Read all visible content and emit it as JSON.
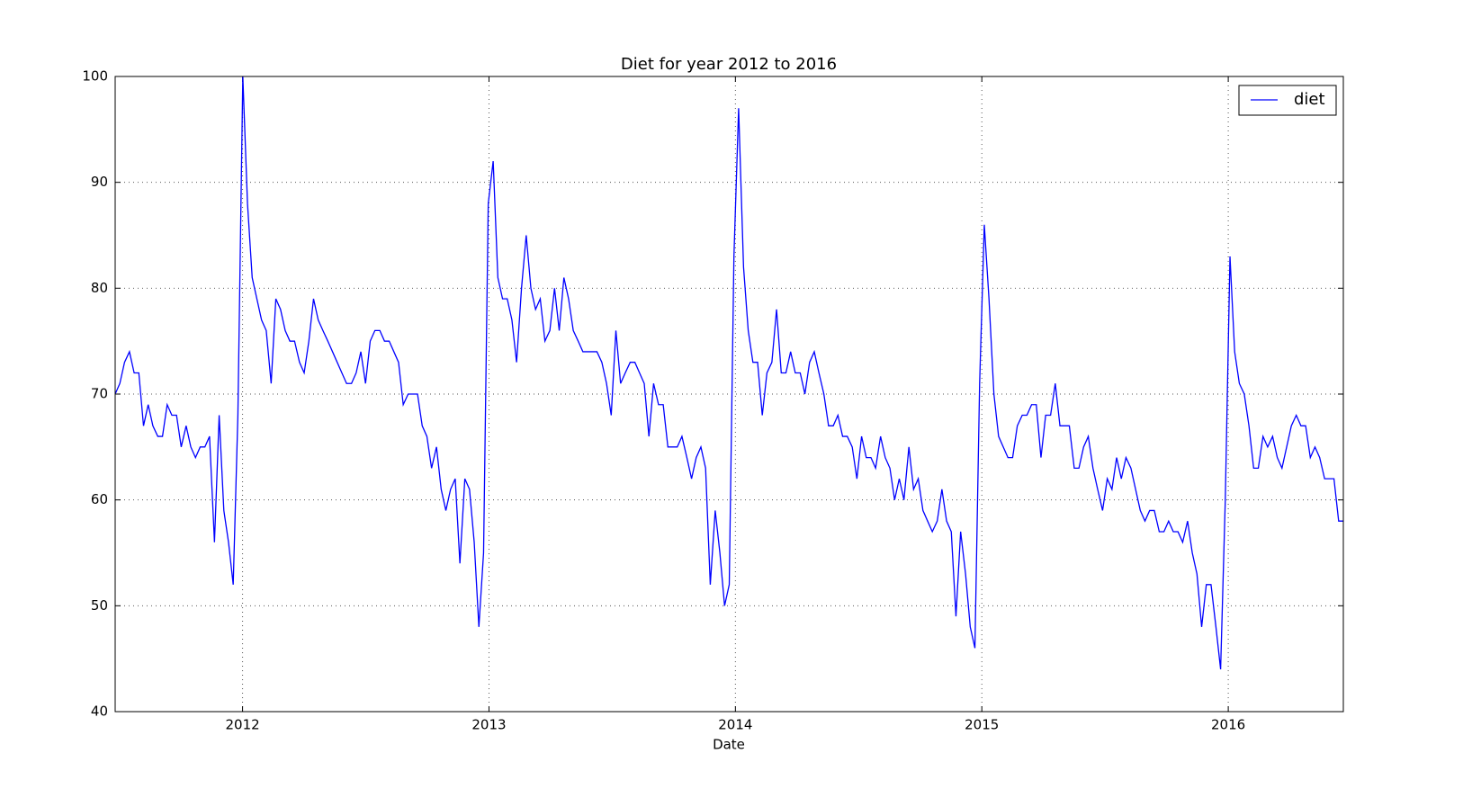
{
  "chart_data": {
    "type": "line",
    "title": "Diet for year 2012 to 2016",
    "x_label": "Date",
    "x": [
      2011.483,
      2011.502,
      2011.521,
      2011.541,
      2011.56,
      2011.579,
      2011.598,
      2011.617,
      2011.636,
      2011.656,
      2011.675,
      2011.694,
      2011.713,
      2011.732,
      2011.751,
      2011.771,
      2011.79,
      2011.809,
      2011.828,
      2011.847,
      2011.866,
      2011.886,
      2011.905,
      2011.924,
      2011.943,
      2011.962,
      2011.981,
      2012.001,
      2012.02,
      2012.039,
      2012.058,
      2012.077,
      2012.096,
      2012.116,
      2012.135,
      2012.154,
      2012.173,
      2012.192,
      2012.211,
      2012.231,
      2012.25,
      2012.269,
      2012.288,
      2012.307,
      2012.326,
      2012.346,
      2012.365,
      2012.384,
      2012.403,
      2012.422,
      2012.442,
      2012.461,
      2012.48,
      2012.499,
      2012.518,
      2012.537,
      2012.557,
      2012.576,
      2012.595,
      2012.614,
      2012.633,
      2012.652,
      2012.672,
      2012.691,
      2012.71,
      2012.729,
      2012.748,
      2012.767,
      2012.787,
      2012.806,
      2012.825,
      2012.844,
      2012.863,
      2012.882,
      2012.902,
      2012.921,
      2012.94,
      2012.959,
      2012.978,
      2012.997,
      2013.017,
      2013.036,
      2013.055,
      2013.074,
      2013.093,
      2013.112,
      2013.132,
      2013.151,
      2013.17,
      2013.189,
      2013.208,
      2013.227,
      2013.247,
      2013.266,
      2013.285,
      2013.304,
      2013.323,
      2013.342,
      2013.362,
      2013.381,
      2013.4,
      2013.419,
      2013.438,
      2013.458,
      2013.477,
      2013.496,
      2013.515,
      2013.534,
      2013.553,
      2013.573,
      2013.592,
      2013.611,
      2013.63,
      2013.649,
      2013.668,
      2013.688,
      2013.707,
      2013.726,
      2013.745,
      2013.764,
      2013.783,
      2013.803,
      2013.822,
      2013.841,
      2013.86,
      2013.879,
      2013.898,
      2013.918,
      2013.937,
      2013.956,
      2013.975,
      2013.994,
      2014.013,
      2014.033,
      2014.052,
      2014.071,
      2014.09,
      2014.109,
      2014.128,
      2014.148,
      2014.167,
      2014.186,
      2014.205,
      2014.224,
      2014.243,
      2014.263,
      2014.282,
      2014.301,
      2014.32,
      2014.339,
      2014.359,
      2014.378,
      2014.397,
      2014.416,
      2014.435,
      2014.454,
      2014.474,
      2014.493,
      2014.512,
      2014.531,
      2014.55,
      2014.569,
      2014.589,
      2014.608,
      2014.627,
      2014.646,
      2014.665,
      2014.684,
      2014.704,
      2014.723,
      2014.742,
      2014.761,
      2014.78,
      2014.799,
      2014.819,
      2014.838,
      2014.857,
      2014.876,
      2014.895,
      2014.914,
      2014.934,
      2014.953,
      2014.972,
      2014.991,
      2015.01,
      2015.029,
      2015.049,
      2015.068,
      2015.087,
      2015.106,
      2015.125,
      2015.144,
      2015.164,
      2015.183,
      2015.202,
      2015.221,
      2015.24,
      2015.259,
      2015.279,
      2015.298,
      2015.317,
      2015.336,
      2015.355,
      2015.375,
      2015.394,
      2015.413,
      2015.432,
      2015.451,
      2015.47,
      2015.49,
      2015.509,
      2015.528,
      2015.547,
      2015.566,
      2015.585,
      2015.605,
      2015.624,
      2015.643,
      2015.662,
      2015.681,
      2015.7,
      2015.72,
      2015.739,
      2015.758,
      2015.777,
      2015.796,
      2015.815,
      2015.835,
      2015.854,
      2015.873,
      2015.892,
      2015.911,
      2015.93,
      2015.95,
      2015.969,
      2015.988,
      2016.007,
      2016.026,
      2016.045,
      2016.065,
      2016.084,
      2016.103,
      2016.122,
      2016.141,
      2016.16,
      2016.18,
      2016.199,
      2016.218,
      2016.237,
      2016.256,
      2016.276,
      2016.295,
      2016.314,
      2016.333,
      2016.352,
      2016.371,
      2016.391,
      2016.41,
      2016.429,
      2016.448,
      2016.467
    ],
    "series": [
      {
        "name": "diet",
        "color": "#0000ff",
        "values": [
          70,
          71,
          73,
          74,
          72,
          72,
          67,
          69,
          67,
          66,
          66,
          69,
          68,
          68,
          65,
          67,
          65,
          64,
          65,
          65,
          66,
          56,
          68,
          59,
          56,
          52,
          68,
          100,
          88,
          81,
          79,
          77,
          76,
          71,
          79,
          78,
          76,
          75,
          75,
          73,
          72,
          75,
          79,
          77,
          76,
          75,
          74,
          73,
          72,
          71,
          71,
          72,
          74,
          71,
          75,
          76,
          76,
          75,
          75,
          74,
          73,
          69,
          70,
          70,
          70,
          67,
          66,
          63,
          65,
          61,
          59,
          61,
          62,
          54,
          62,
          61,
          56,
          48,
          55,
          88,
          92,
          81,
          79,
          79,
          77,
          73,
          80,
          85,
          80,
          78,
          79,
          75,
          76,
          80,
          76,
          81,
          79,
          76,
          75,
          74,
          74,
          74,
          74,
          73,
          71,
          68,
          76,
          71,
          72,
          73,
          73,
          72,
          71,
          66,
          71,
          69,
          69,
          65,
          65,
          65,
          66,
          64,
          62,
          64,
          65,
          63,
          52,
          59,
          55,
          50,
          52,
          83,
          97,
          82,
          76,
          73,
          73,
          68,
          72,
          73,
          78,
          72,
          72,
          74,
          72,
          72,
          70,
          73,
          74,
          72,
          70,
          67,
          67,
          68,
          66,
          66,
          65,
          62,
          66,
          64,
          64,
          63,
          66,
          64,
          63,
          60,
          62,
          60,
          65,
          61,
          62,
          59,
          58,
          57,
          58,
          61,
          58,
          57,
          49,
          57,
          53,
          48,
          46,
          71,
          86,
          79,
          70,
          66,
          65,
          64,
          64,
          67,
          68,
          68,
          69,
          69,
          64,
          68,
          68,
          71,
          67,
          67,
          67,
          63,
          63,
          65,
          66,
          63,
          61,
          59,
          62,
          61,
          64,
          62,
          64,
          63,
          61,
          59,
          58,
          59,
          59,
          57,
          57,
          58,
          57,
          57,
          56,
          58,
          55,
          53,
          48,
          52,
          52,
          48,
          44,
          60,
          83,
          74,
          71,
          70,
          67,
          63,
          63,
          66,
          65,
          66,
          64,
          63,
          65,
          67,
          68,
          67,
          67,
          64,
          65,
          64,
          62,
          62,
          62,
          58,
          58
        ]
      }
    ],
    "xlim": [
      2011.483,
      2016.467
    ],
    "xticks": [
      2012,
      2013,
      2014,
      2015,
      2016
    ],
    "ylim": [
      40,
      100
    ],
    "yticks": [
      40,
      50,
      60,
      70,
      80,
      90,
      100
    ],
    "grid": true,
    "legend": "upper right"
  }
}
